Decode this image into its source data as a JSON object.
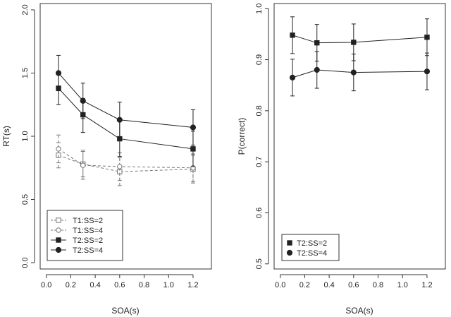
{
  "chart_data": [
    {
      "type": "line",
      "title": "",
      "xlabel": "SOA(s)",
      "ylabel": "RT(s)",
      "xlim": [
        -0.05,
        1.35
      ],
      "ylim": [
        -0.05,
        2.05
      ],
      "xticks": [
        0.0,
        0.2,
        0.4,
        0.6,
        0.8,
        1.0,
        1.2
      ],
      "xtick_labels": [
        "0.0",
        "0.2",
        "0.4",
        "0.6",
        "0.8",
        "1.0",
        "1.2"
      ],
      "yticks": [
        0.0,
        0.5,
        1.0,
        1.5,
        2.0
      ],
      "ytick_labels": [
        "0.0",
        "0.5",
        "1.0",
        "1.5",
        "2.0"
      ],
      "legend_position": "bottom-left",
      "series": [
        {
          "name": "T1:SS=2",
          "x": [
            0.1,
            0.3,
            0.6,
            1.2
          ],
          "values": [
            0.85,
            0.78,
            0.72,
            0.74
          ],
          "err_low": [
            0.75,
            0.68,
            0.61,
            0.63
          ],
          "err_high": [
            0.95,
            0.88,
            0.83,
            0.85
          ],
          "marker": "square-open",
          "line": "dashed",
          "color": "#777777"
        },
        {
          "name": "T1:SS=4",
          "x": [
            0.1,
            0.3,
            0.6,
            1.2
          ],
          "values": [
            0.9,
            0.77,
            0.76,
            0.75
          ],
          "err_low": [
            0.79,
            0.66,
            0.65,
            0.64
          ],
          "err_high": [
            1.01,
            0.89,
            0.87,
            0.86
          ],
          "marker": "circle-open",
          "line": "dashed",
          "color": "#777777"
        },
        {
          "name": "T2:SS=2",
          "x": [
            0.1,
            0.3,
            0.6,
            1.2
          ],
          "values": [
            1.38,
            1.17,
            0.98,
            0.9
          ],
          "err_low": [
            1.25,
            1.03,
            0.84,
            0.76
          ],
          "err_high": [
            1.51,
            1.3,
            1.12,
            1.04
          ],
          "marker": "square-filled",
          "line": "solid",
          "color": "#222222"
        },
        {
          "name": "T2:SS=4",
          "x": [
            0.1,
            0.3,
            0.6,
            1.2
          ],
          "values": [
            1.5,
            1.28,
            1.13,
            1.07
          ],
          "err_low": [
            1.36,
            1.14,
            0.99,
            0.93
          ],
          "err_high": [
            1.64,
            1.42,
            1.27,
            1.21
          ],
          "marker": "circle-filled",
          "line": "solid",
          "color": "#222222"
        }
      ]
    },
    {
      "type": "line",
      "title": "",
      "xlabel": "SOA(s)",
      "ylabel": "P(correct)",
      "xlim": [
        -0.05,
        1.35
      ],
      "ylim": [
        0.49,
        1.01
      ],
      "xticks": [
        0.0,
        0.2,
        0.4,
        0.6,
        0.8,
        1.0,
        1.2
      ],
      "xtick_labels": [
        "0.0",
        "0.2",
        "0.4",
        "0.6",
        "0.8",
        "1.0",
        "1.2"
      ],
      "yticks": [
        0.5,
        0.6,
        0.7,
        0.8,
        0.9,
        1.0
      ],
      "ytick_labels": [
        "0.5",
        "0.6",
        "0.7",
        "0.8",
        "0.9",
        "1.0"
      ],
      "legend_position": "bottom-left",
      "series": [
        {
          "name": "T2:SS=2",
          "x": [
            0.1,
            0.3,
            0.6,
            1.2
          ],
          "values": [
            0.948,
            0.933,
            0.934,
            0.944
          ],
          "err_low": [
            0.912,
            0.897,
            0.898,
            0.908
          ],
          "err_high": [
            0.984,
            0.969,
            0.97,
            0.98
          ],
          "marker": "square-filled",
          "line": "solid",
          "color": "#222222"
        },
        {
          "name": "T2:SS=4",
          "x": [
            0.1,
            0.3,
            0.6,
            1.2
          ],
          "values": [
            0.865,
            0.88,
            0.875,
            0.877
          ],
          "err_low": [
            0.829,
            0.844,
            0.839,
            0.841
          ],
          "err_high": [
            0.901,
            0.916,
            0.911,
            0.913
          ],
          "marker": "circle-filled",
          "line": "solid",
          "color": "#222222"
        }
      ]
    }
  ]
}
